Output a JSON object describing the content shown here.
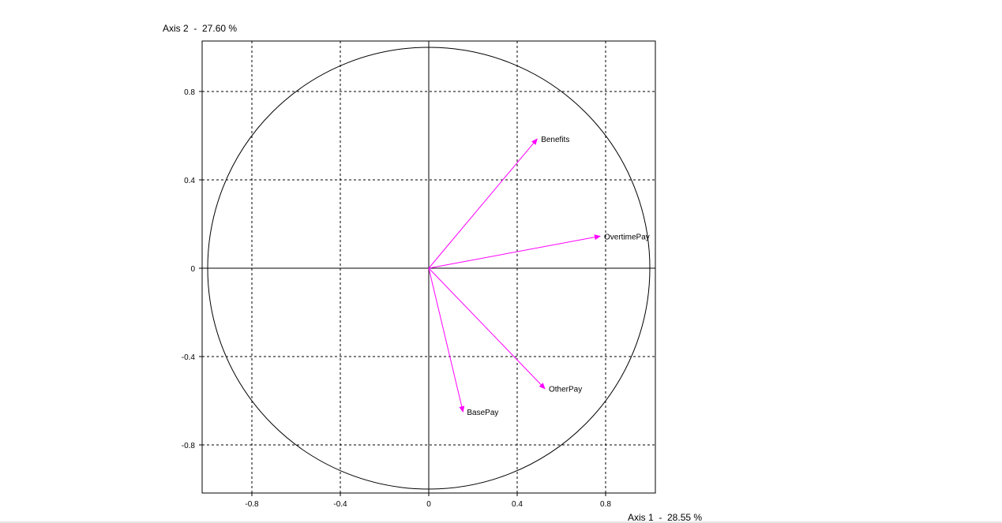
{
  "chart_data": {
    "type": "scatter",
    "subtype": "correlation-circle",
    "title": "",
    "xlabel": "Axis 1  -  28.55 %",
    "ylabel": "Axis 2  -  27.60 %",
    "xlim": [
      -1.02,
      1.02
    ],
    "ylim": [
      -1.02,
      1.02
    ],
    "x_ticks": [
      -0.8,
      -0.4,
      0,
      0.4,
      0.8
    ],
    "y_ticks": [
      0.8,
      0.4,
      0,
      -0.4,
      -0.8
    ],
    "x_tick_labels": [
      "-0.8",
      "-0.4",
      "0",
      "0.4",
      "0.8"
    ],
    "y_tick_labels": [
      "0.8",
      "0.4",
      "0",
      "-0.4",
      "-0.8"
    ],
    "grid": true,
    "grid_style": "dashed",
    "unit_circle": true,
    "vector_color": "#ff00ff",
    "vectors": [
      {
        "name": "Benefits",
        "x": 0.49,
        "y": 0.585
      },
      {
        "name": "OvertimePay",
        "x": 0.775,
        "y": 0.145
      },
      {
        "name": "OtherPay",
        "x": 0.525,
        "y": -0.545
      },
      {
        "name": "BasePay",
        "x": 0.155,
        "y": -0.65
      }
    ]
  }
}
